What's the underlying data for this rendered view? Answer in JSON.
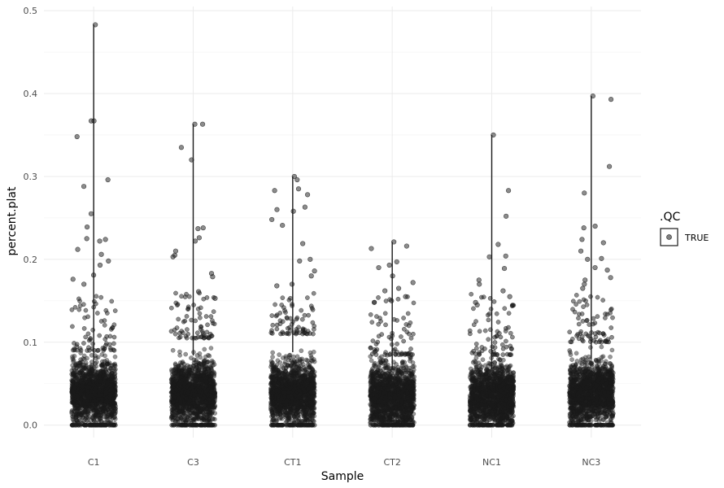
{
  "chart_data": {
    "type": "scatter",
    "subtype": "jittered-violin",
    "xlabel": "Sample",
    "ylabel": "percent.plat",
    "categories": [
      "C1",
      "C3",
      "CT1",
      "CT2",
      "NC1",
      "NC3"
    ],
    "y_ticks": [
      0.0,
      0.1,
      0.2,
      0.3,
      0.4,
      0.5
    ],
    "y_tick_labels": [
      "0.0",
      "0.1",
      "0.2",
      "0.3",
      "0.4",
      "0.5"
    ],
    "ylim": [
      -0.015,
      0.505
    ],
    "grid": true,
    "legend": {
      "title": ".QC",
      "entries": [
        "TRUE"
      ],
      "placement": "right"
    },
    "colors": {
      "points": "#1a1a1a",
      "grid": "#ebebeb",
      "text": "#4d4d4d"
    },
    "series": [
      {
        "category": "C1",
        "max": 0.483,
        "dense_top": 0.09,
        "bulk_center": 0.04,
        "outliers": [
          0.483,
          0.367,
          0.367,
          0.348,
          0.296,
          0.288,
          0.255,
          0.239,
          0.225,
          0.224,
          0.222,
          0.212,
          0.206,
          0.198,
          0.193,
          0.181,
          0.176,
          0.17
        ]
      },
      {
        "category": "C3",
        "max": 0.363,
        "dense_top": 0.105,
        "bulk_center": 0.04,
        "outliers": [
          0.363,
          0.363,
          0.335,
          0.32,
          0.238,
          0.237,
          0.226,
          0.222,
          0.21,
          0.205,
          0.203,
          0.183,
          0.179,
          0.161,
          0.153
        ]
      },
      {
        "category": "CT1",
        "max": 0.3,
        "dense_top": 0.11,
        "bulk_center": 0.04,
        "outliers": [
          0.3,
          0.296,
          0.285,
          0.283,
          0.278,
          0.263,
          0.26,
          0.258,
          0.248,
          0.241,
          0.219,
          0.2,
          0.198,
          0.186,
          0.18,
          0.17,
          0.168
        ]
      },
      {
        "category": "CT2",
        "max": 0.221,
        "dense_top": 0.085,
        "bulk_center": 0.035,
        "outliers": [
          0.221,
          0.216,
          0.213,
          0.197,
          0.193,
          0.19,
          0.18,
          0.172,
          0.165,
          0.162,
          0.155,
          0.15,
          0.148
        ]
      },
      {
        "category": "NC1",
        "max": 0.35,
        "dense_top": 0.085,
        "bulk_center": 0.035,
        "outliers": [
          0.35,
          0.283,
          0.252,
          0.218,
          0.204,
          0.203,
          0.189,
          0.175,
          0.17,
          0.162,
          0.155,
          0.148,
          0.145
        ]
      },
      {
        "category": "NC3",
        "max": 0.397,
        "dense_top": 0.1,
        "bulk_center": 0.04,
        "outliers": [
          0.397,
          0.393,
          0.312,
          0.28,
          0.24,
          0.238,
          0.224,
          0.22,
          0.21,
          0.201,
          0.2,
          0.19,
          0.187,
          0.178,
          0.175,
          0.17,
          0.165
        ]
      }
    ]
  }
}
